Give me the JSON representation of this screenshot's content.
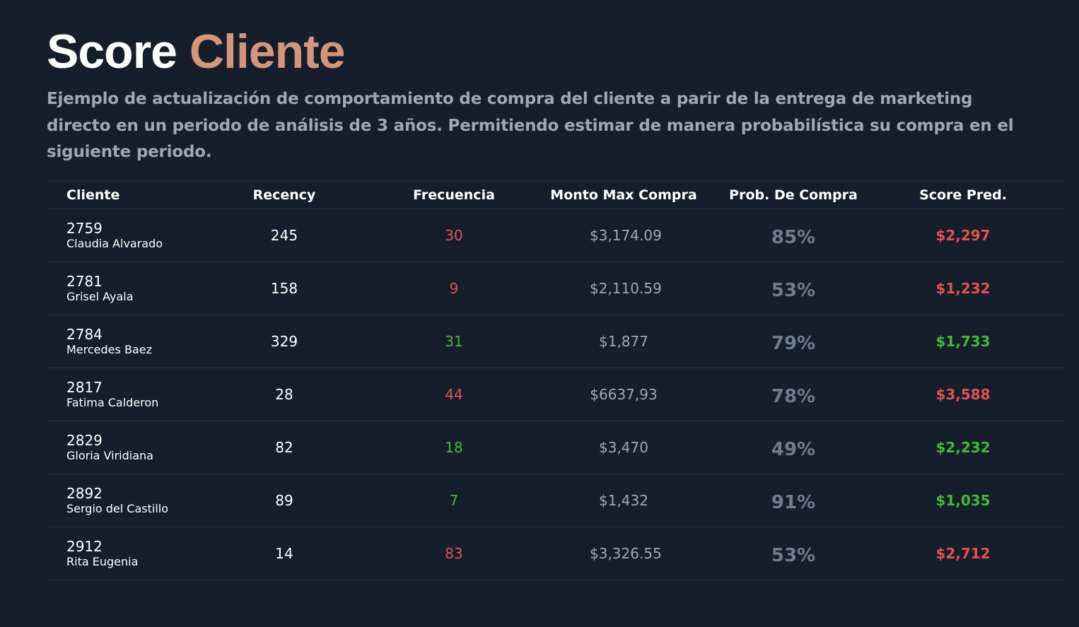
{
  "header": {
    "title_part1": "Score",
    "title_part2": "Cliente",
    "subtitle": "Ejemplo de actualización de comportamiento de compra del cliente a parir de la entrega de marketing directo en un periodo de análisis de 3 años. Permitiendo estimar de manera probabilística su compra en el siguiente periodo."
  },
  "colors": {
    "accent": "#d4957d",
    "red": "#e05252",
    "green": "#41b83a",
    "muted": "#a3a6ac",
    "prob": "#6f7b92"
  },
  "table": {
    "columns": [
      "Cliente",
      "Recency",
      "Frecuencia",
      "Monto Max Compra",
      "Prob. De Compra",
      "Score Pred."
    ],
    "rows": [
      {
        "id": "2759",
        "name": "Claudia Alvarado",
        "recency": "245",
        "frecuencia": "30",
        "frecuencia_color": "#e05252",
        "monto": "$3,174.09",
        "prob": "85%",
        "score": "$2,297",
        "score_color": "#e05252"
      },
      {
        "id": "2781",
        "name": "Grisel Ayala",
        "recency": "158",
        "frecuencia": "9",
        "frecuencia_color": "#e05252",
        "monto": "$2,110.59",
        "prob": "53%",
        "score": "$1,232",
        "score_color": "#e05252"
      },
      {
        "id": "2784",
        "name": "Mercedes Baez",
        "recency": "329",
        "frecuencia": "31",
        "frecuencia_color": "#41b83a",
        "monto": "$1,877",
        "prob": "79%",
        "score": "$1,733",
        "score_color": "#41b83a"
      },
      {
        "id": "2817",
        "name": "Fatima Calderon",
        "recency": "28",
        "frecuencia": "44",
        "frecuencia_color": "#e05252",
        "monto": "$6637,93",
        "prob": "78%",
        "score": "$3,588",
        "score_color": "#e05252"
      },
      {
        "id": "2829",
        "name": "Gloria Viridiana",
        "recency": "82",
        "frecuencia": "18",
        "frecuencia_color": "#41b83a",
        "monto": "$3,470",
        "prob": "49%",
        "score": "$2,232",
        "score_color": "#41b83a"
      },
      {
        "id": "2892",
        "name": "Sergio del Castillo",
        "recency": "89",
        "frecuencia": "7",
        "frecuencia_color": "#41b83a",
        "monto": "$1,432",
        "prob": "91%",
        "score": "$1,035",
        "score_color": "#41b83a"
      },
      {
        "id": "2912",
        "name": "Rita Eugenia",
        "recency": "14",
        "frecuencia": "83",
        "frecuencia_color": "#e05252",
        "monto": "$3,326.55",
        "prob": "53%",
        "score": "$2,712",
        "score_color": "#e05252"
      }
    ]
  }
}
